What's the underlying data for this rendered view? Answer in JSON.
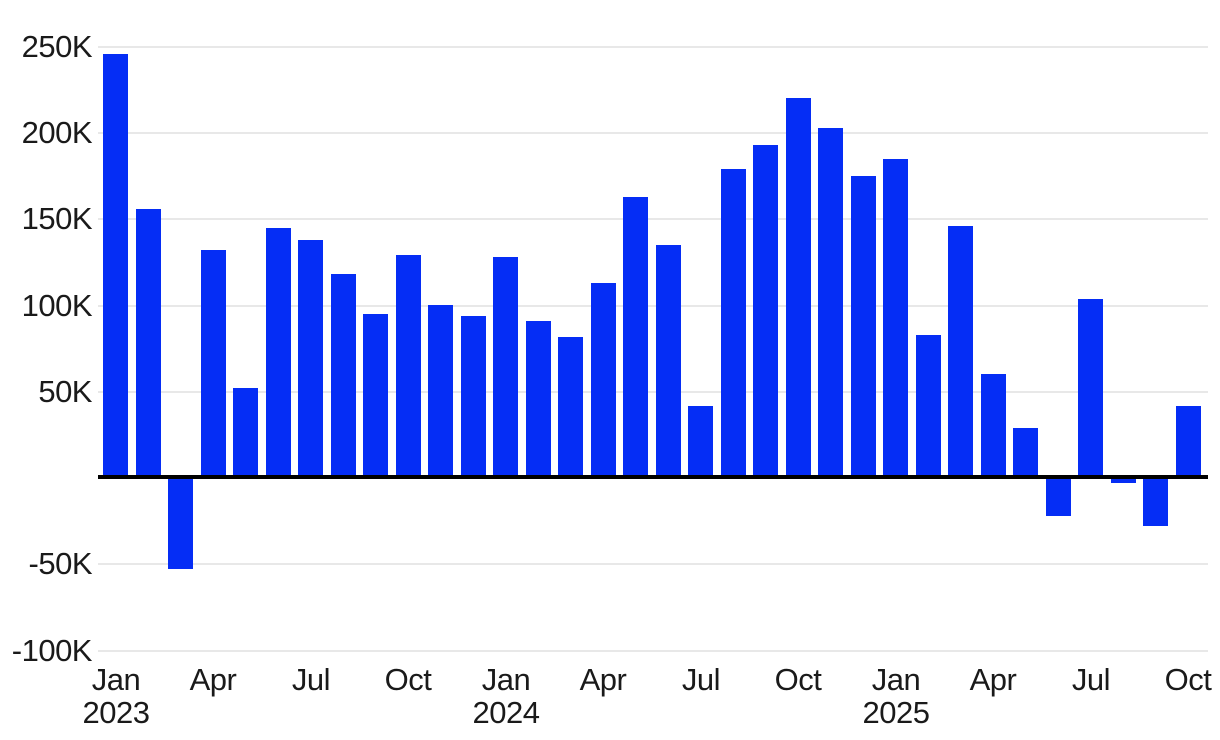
{
  "chart_data": {
    "type": "bar",
    "x": [
      "Jan 2023",
      "Feb 2023",
      "Mar 2023",
      "Apr 2023",
      "May 2023",
      "Jun 2023",
      "Jul 2023",
      "Aug 2023",
      "Sep 2023",
      "Oct 2023",
      "Nov 2023",
      "Dec 2023",
      "Jan 2024",
      "Feb 2024",
      "Mar 2024",
      "Apr 2024",
      "May 2024",
      "Jun 2024",
      "Jul 2024",
      "Aug 2024",
      "Sep 2024",
      "Oct 2024",
      "Nov 2024",
      "Dec 2024",
      "Jan 2025",
      "Feb 2025",
      "Mar 2025",
      "Apr 2025",
      "May 2025",
      "Jun 2025",
      "Jul 2025",
      "Aug 2025",
      "Sep 2025",
      "Oct 2025"
    ],
    "values": [
      246,
      156,
      -53,
      132,
      52,
      145,
      138,
      118,
      95,
      129,
      100,
      94,
      128,
      91,
      82,
      113,
      163,
      135,
      42,
      179,
      193,
      220,
      203,
      175,
      185,
      83,
      146,
      60,
      29,
      -22,
      104,
      -3,
      -28,
      42
    ],
    "value_unit": "K",
    "ylim": [
      -100,
      250
    ],
    "y_ticks": [
      {
        "value": 250,
        "label": "250K"
      },
      {
        "value": 200,
        "label": "200K"
      },
      {
        "value": 150,
        "label": "150K"
      },
      {
        "value": 100,
        "label": "100K"
      },
      {
        "value": 50,
        "label": "50K"
      },
      {
        "value": -50,
        "label": "-50K"
      },
      {
        "value": -100,
        "label": "-100K"
      }
    ],
    "x_ticks": [
      {
        "month_index": 0,
        "label": "Jan",
        "year": "2023"
      },
      {
        "month_index": 3,
        "label": "Apr"
      },
      {
        "month_index": 6,
        "label": "Jul"
      },
      {
        "month_index": 9,
        "label": "Oct"
      },
      {
        "month_index": 12,
        "label": "Jan",
        "year": "2024"
      },
      {
        "month_index": 15,
        "label": "Apr"
      },
      {
        "month_index": 18,
        "label": "Jul"
      },
      {
        "month_index": 21,
        "label": "Oct"
      },
      {
        "month_index": 24,
        "label": "Jan",
        "year": "2025"
      },
      {
        "month_index": 27,
        "label": "Apr"
      },
      {
        "month_index": 30,
        "label": "Jul"
      },
      {
        "month_index": 33,
        "label": "Oct"
      }
    ],
    "grid": true,
    "legend": "none",
    "colors": {
      "bar": "#052df5",
      "gridline": "#e8e8e8",
      "zero_line": "#000000",
      "tick_label": "#1a1a1a",
      "background": "#ffffff"
    }
  }
}
